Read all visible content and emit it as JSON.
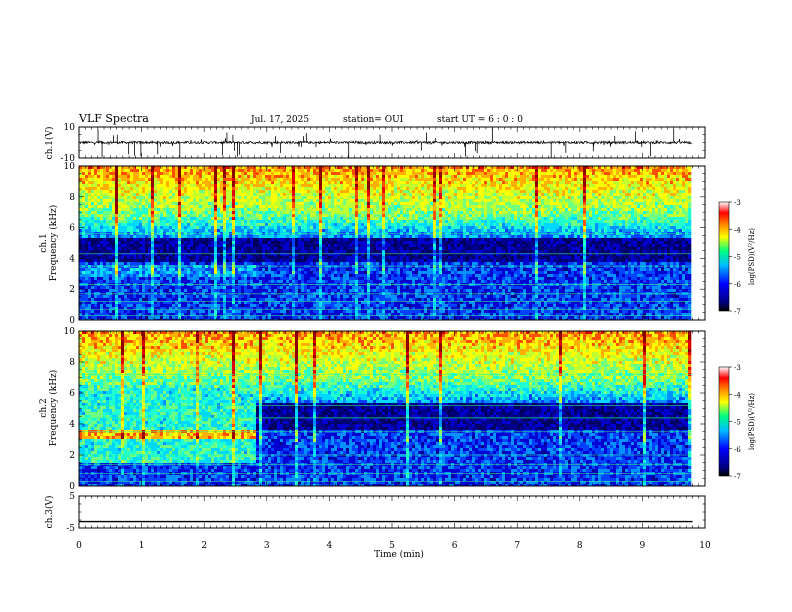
{
  "header": {
    "title": "VLF Spectra",
    "date": "Jul. 17, 2025",
    "station": "station= OUI",
    "start": "start UT =  6 : 0 : 0"
  },
  "chart_data": [
    {
      "type": "line",
      "id": "ch1_waveform",
      "ylabel": "ch.1(V)",
      "ylim": [
        -10,
        10
      ],
      "yticks": [
        "10",
        "-10"
      ],
      "xlim": [
        0,
        10
      ],
      "baseline": 0,
      "description_values": {
        "noise_amplitude_approx": 0.5,
        "spike_amplitude_max": 10
      }
    },
    {
      "type": "heatmap",
      "id": "ch1_spectrogram",
      "ylabel_top": "ch.1",
      "ylabel": "Frequency (kHz)",
      "ylim": [
        0,
        10
      ],
      "yticks": [
        "0",
        "2",
        "4",
        "6",
        "8",
        "10"
      ],
      "xlim": [
        0,
        10
      ],
      "data_end_min": 9.8,
      "colorbar": {
        "label": "log(PSD)(V²/Hz)",
        "range": [
          -7,
          -3
        ],
        "ticks": [
          "-3",
          "-4",
          "-5",
          "-6",
          "-7"
        ]
      }
    },
    {
      "type": "heatmap",
      "id": "ch2_spectrogram",
      "ylabel_top": "ch.2",
      "ylabel": "Frequency (kHz)",
      "ylim": [
        0,
        10
      ],
      "yticks": [
        "0",
        "2",
        "4",
        "6",
        "8",
        "10"
      ],
      "xlim": [
        0,
        10
      ],
      "data_end_min": 9.8,
      "regime_change_min": 2.8,
      "colorbar": {
        "label": "log(PSD)(V²/Hz)",
        "range": [
          -7,
          -3
        ],
        "ticks": [
          "-3",
          "-4",
          "-5",
          "-6",
          "-7"
        ]
      }
    },
    {
      "type": "line",
      "id": "ch3_waveform",
      "ylabel": "ch.3(V)",
      "ylim": [
        -5,
        5
      ],
      "yticks": [
        "5",
        "-5"
      ],
      "xlim": [
        0,
        10
      ],
      "constant_value": -3,
      "xlabel": "Time (min)",
      "xticks": [
        "0",
        "1",
        "2",
        "3",
        "4",
        "5",
        "6",
        "7",
        "8",
        "9",
        "10"
      ]
    }
  ],
  "colors": {
    "jet": [
      "#000080",
      "#0000ff",
      "#00bfff",
      "#00ff80",
      "#ffff00",
      "#ff8000",
      "#ff0000",
      "#800000"
    ],
    "frame": "#000000",
    "trace": "#000000"
  }
}
